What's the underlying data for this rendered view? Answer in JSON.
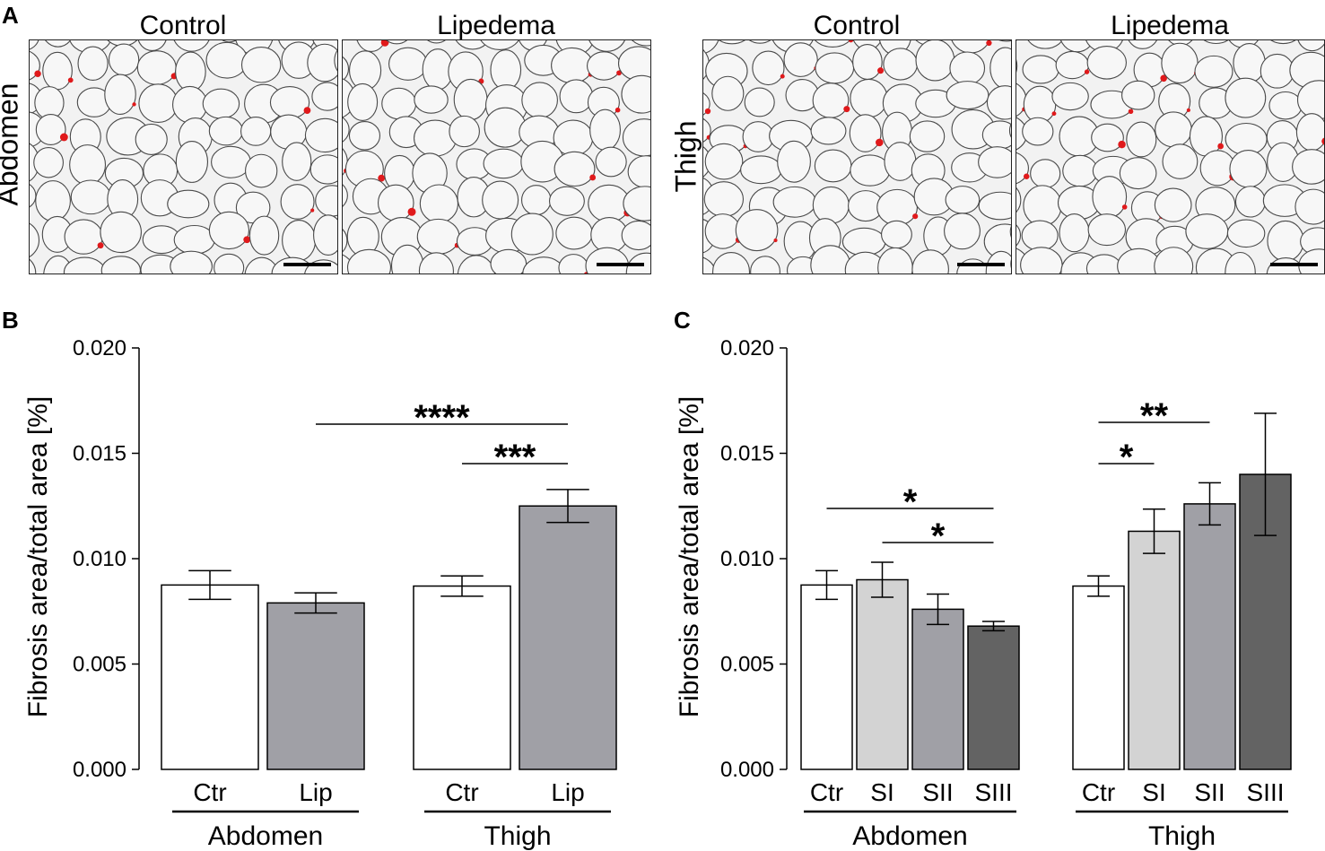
{
  "panel_letters": {
    "a": "A",
    "b": "B",
    "c": "C"
  },
  "panel_a": {
    "column_labels": [
      "Control",
      "Lipedema",
      "Control",
      "Lipedema"
    ],
    "row_labels": {
      "left": "Abdomen",
      "right": "Thigh"
    },
    "colors": {
      "membrane": "#4a4a4a",
      "fibrosis": "#e0191b",
      "fill": "#f2f2f2"
    }
  },
  "chart_data": [
    {
      "type": "bar",
      "panel": "B",
      "ylabel": "Fibrosis area/total area [%]",
      "ylim": [
        0,
        0.02
      ],
      "yticks": [
        "0.000",
        "0.005",
        "0.010",
        "0.015",
        "0.020"
      ],
      "ytick_values": [
        0,
        0.005,
        0.01,
        0.015,
        0.02
      ],
      "categories": [
        "Ctr",
        "Lip",
        "Ctr",
        "Lip"
      ],
      "groups": [
        "Abdomen",
        "Thigh"
      ],
      "values": [
        0.00875,
        0.0079,
        0.0087,
        0.0125
      ],
      "errors": [
        0.00068,
        0.00048,
        0.00048,
        0.00078
      ],
      "fills": [
        "#ffffff",
        "#a0a0a6",
        "#ffffff",
        "#a0a0a6"
      ],
      "significance": [
        {
          "from": 1,
          "to": 3,
          "label": "****"
        },
        {
          "from": 2,
          "to": 3,
          "label": "***"
        }
      ]
    },
    {
      "type": "bar",
      "panel": "C",
      "ylabel": "Fibrosis area/total area [%]",
      "ylim": [
        0,
        0.02
      ],
      "yticks": [
        "0.000",
        "0.005",
        "0.010",
        "0.015",
        "0.020"
      ],
      "ytick_values": [
        0,
        0.005,
        0.01,
        0.015,
        0.02
      ],
      "categories": [
        "Ctr",
        "SI",
        "SII",
        "SIII",
        "Ctr",
        "SI",
        "SII",
        "SIII"
      ],
      "groups": [
        "Abdomen",
        "Thigh"
      ],
      "values": [
        0.00875,
        0.009,
        0.0076,
        0.0068,
        0.0087,
        0.0113,
        0.0126,
        0.014
      ],
      "errors": [
        0.00068,
        0.00083,
        0.00072,
        0.00022,
        0.00048,
        0.00105,
        0.001,
        0.0029
      ],
      "fills": [
        "#ffffff",
        "#d3d3d3",
        "#a0a0a6",
        "#636363",
        "#ffffff",
        "#d3d3d3",
        "#a0a0a6",
        "#636363"
      ],
      "significance": [
        {
          "from": 0,
          "to": 3,
          "label": "*"
        },
        {
          "from": 1,
          "to": 3,
          "label": "*"
        },
        {
          "from": 4,
          "to": 5,
          "label": "*"
        },
        {
          "from": 4,
          "to": 6,
          "label": "**"
        }
      ]
    }
  ]
}
